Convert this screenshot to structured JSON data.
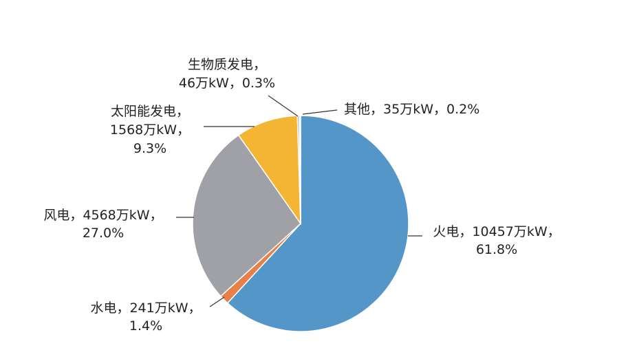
{
  "chart_data": {
    "type": "pie",
    "categories": [
      "火电",
      "水电",
      "风电",
      "太阳能发电",
      "生物质发电",
      "其他"
    ],
    "separator": "，",
    "values": [
      10457,
      241,
      4568,
      1568,
      46,
      35
    ],
    "value_labels": [
      "10457万kW",
      "241万kW",
      "4568万kW",
      "1568万kW",
      "46万kW",
      "35万kW"
    ],
    "percents": [
      61.8,
      1.4,
      27.0,
      9.3,
      0.3,
      0.2
    ],
    "percent_labels": [
      "61.8%",
      "1.4%",
      "27.0%",
      "9.3%",
      "0.3%",
      "0.2%"
    ],
    "colors": [
      "#5596c9",
      "#e8804a",
      "#a0a1a6",
      "#f4b434",
      "#8fa9c8",
      "#c9d6e3"
    ]
  }
}
